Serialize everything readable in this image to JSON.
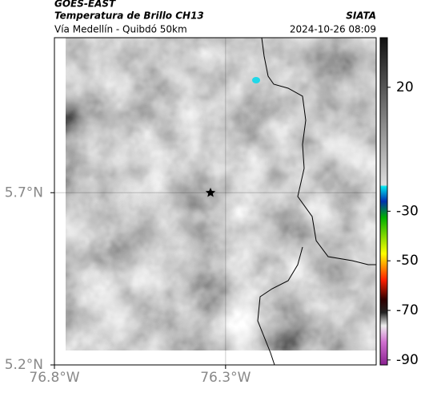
{
  "header": {
    "source": "GOES-EAST",
    "title": "Temperatura de Brillo CH13",
    "agency": "SIATA",
    "subtitle": "Vía Medellín - Quibdó 50km",
    "datetime": "2024-10-26 08:09"
  },
  "map": {
    "xlim": [
      -76.8,
      -75.86
    ],
    "ylim": [
      5.2,
      6.15
    ],
    "xticks": [
      {
        "value": -76.8,
        "label": "76.8°W"
      },
      {
        "value": -76.3,
        "label": "76.3°W"
      }
    ],
    "yticks": [
      {
        "value": 5.2,
        "label": "5.2°N"
      },
      {
        "value": 5.7,
        "label": "5.7°N"
      }
    ],
    "grid": true
  },
  "colorbar": {
    "lim": [
      -92,
      40
    ],
    "ticks": [
      20,
      -30,
      -50,
      -70,
      -90
    ]
  }
}
